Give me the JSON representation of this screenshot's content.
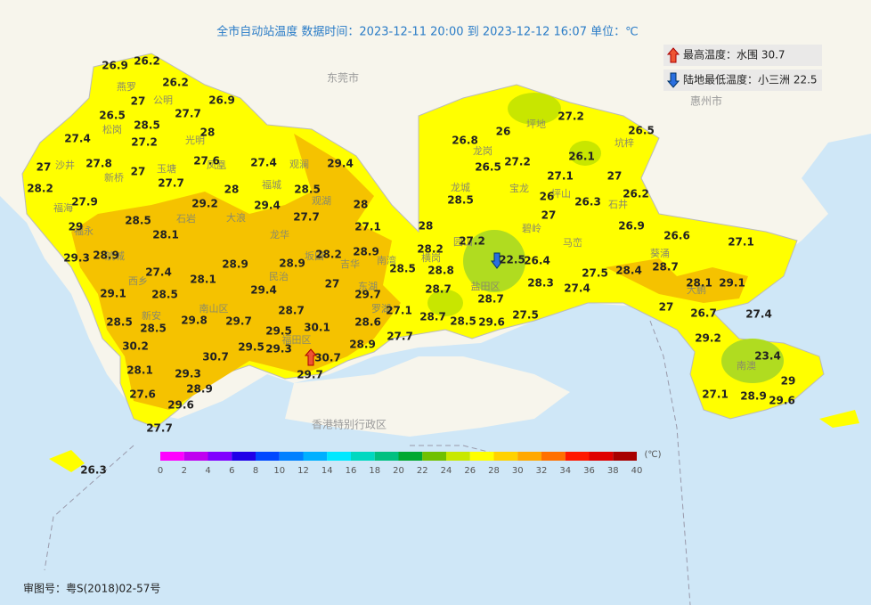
{
  "title": "全市自动站温度  数据时间：2023-12-11 20:00 到 2023-12-12 16:07  单位：℃",
  "extremes": {
    "max": "最高温度：水围 30.7",
    "min": "陆地最低温度：小三洲 22.5"
  },
  "regions": [
    "东莞市",
    "惠州市",
    "香港特别行政区"
  ],
  "districts": [
    "燕罗",
    "公明",
    "松岗",
    "光明",
    "沙井",
    "新桥",
    "玉塘",
    "凤凰",
    "观澜",
    "福城",
    "观湖",
    "福海",
    "石岩",
    "大浪",
    "龙华",
    "福永",
    "航城",
    "坂田",
    "吉华",
    "南湾",
    "西乡",
    "民治",
    "东湖",
    "罗湖",
    "新安",
    "南山区",
    "福田区",
    "龙岗",
    "龙城",
    "宝龙",
    "坪地",
    "坑梓",
    "坪山",
    "石井",
    "碧岭",
    "马峦",
    "葵涌",
    "大鹏",
    "南澳",
    "横岗",
    "园山",
    "盐田区"
  ],
  "stations": [
    26.9,
    26.2,
    26.2,
    27,
    26.9,
    27.7,
    26.5,
    28.5,
    28,
    27.4,
    27.2,
    27,
    27.8,
    27,
    27.6,
    27.4,
    29.4,
    28.2,
    27.7,
    28,
    28.5,
    27.9,
    29.2,
    29.4,
    28,
    27.7,
    28.5,
    27.1,
    29,
    28.1,
    29.3,
    28.9,
    28.2,
    28.9,
    27.4,
    28.9,
    28.9,
    28.5,
    29.1,
    28.5,
    28.1,
    29.4,
    27,
    29.7,
    28.7,
    28.5,
    28.5,
    29.8,
    29.7,
    30.1,
    29.5,
    28.6,
    27.1,
    27.7,
    30.2,
    29.5,
    29.3,
    28.9,
    30.7,
    30.7,
    28.1,
    29.3,
    29.7,
    28.9,
    27.6,
    29.6,
    27.7,
    27.2,
    26.5,
    26.8,
    26,
    26.1,
    26.5,
    27.2,
    27.1,
    27,
    28.5,
    26,
    26.3,
    26.2,
    27,
    28,
    26.9,
    26.6,
    27.1,
    27.2,
    28.2,
    28.8,
    22.5,
    26.4,
    28.7,
    27.5,
    28.4,
    28.1,
    29.1,
    28.7,
    28.3,
    27.4,
    28.7,
    27,
    26.7,
    27.4,
    28.7,
    28.5,
    29.6,
    27.5,
    29.2,
    23.4,
    29,
    27.1,
    28.9,
    29.6,
    26.3
  ],
  "scale": {
    "colors": [
      "#ff00ff",
      "#c000f0",
      "#8000ff",
      "#2000e8",
      "#0048ff",
      "#0080ff",
      "#00b0ff",
      "#00e8ff",
      "#00d8c0",
      "#00c080",
      "#00a830",
      "#70c000",
      "#c8e800",
      "#ffff00",
      "#ffd200",
      "#ffa800",
      "#ff7000",
      "#ff1800",
      "#e00000",
      "#a80000"
    ],
    "ticks": [
      0,
      2,
      4,
      6,
      8,
      10,
      12,
      14,
      16,
      18,
      20,
      22,
      24,
      26,
      28,
      30,
      32,
      34,
      36,
      38,
      40
    ],
    "unit": "(℃)"
  },
  "footer": "审图号：粤S(2018)02-57号"
}
